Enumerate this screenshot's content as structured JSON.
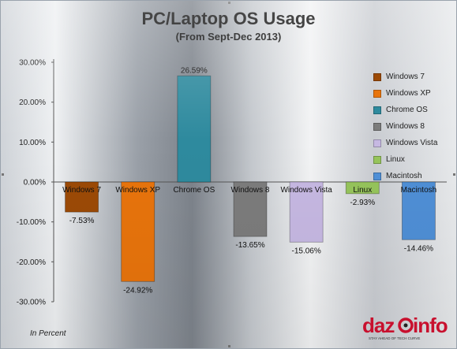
{
  "chart_data": {
    "type": "bar",
    "title": "PC/Laptop OS Usage",
    "subtitle": "(From Sept-Dec 2013)",
    "categories": [
      "Windows 7",
      "Windows XP",
      "Chrome OS",
      "Windows 8",
      "Windows Vista",
      "Linux",
      "Macintosh"
    ],
    "values": [
      -7.53,
      -24.92,
      26.59,
      -13.65,
      -15.06,
      -2.93,
      -14.46
    ],
    "value_labels": [
      "-7.53%",
      "-24.92%",
      "26.59%",
      "-13.65%",
      "-15.06%",
      "-2.93%",
      "-14.46%"
    ],
    "colors": [
      "#9c4a06",
      "#e8740c",
      "#2e8a9e",
      "#7c7c7c",
      "#c6b8e2",
      "#96c45b",
      "#4f8fd6"
    ],
    "ylim": [
      -30,
      30
    ],
    "yticks": [
      30,
      20,
      10,
      0,
      -10,
      -20,
      -30
    ],
    "ytick_labels": [
      "30.00%",
      "20.00%",
      "10.00%",
      "0.00%",
      "-10.00%",
      "-20.00%",
      "-30.00%"
    ],
    "legend": {
      "position": "right",
      "entries": [
        "Windows 7",
        "Windows XP",
        "Chrome OS",
        "Windows 8",
        "Windows Vista",
        "Linux",
        "Macintosh"
      ]
    },
    "grid": false,
    "xlabel": "",
    "ylabel": ""
  },
  "footnote": "In Percent",
  "logo": {
    "text": "dazeinfo",
    "tagline": "STAY AHEAD OF TECH CURVE"
  }
}
